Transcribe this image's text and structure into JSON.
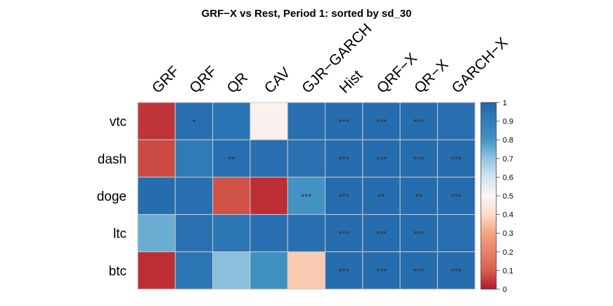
{
  "chart_data": {
    "type": "heatmap",
    "title": "GRF−X vs Rest,  Period 1: sorted by sd_30",
    "columns": [
      "GRF",
      "QRF",
      "QR",
      "CAV",
      "GJR−GARCH",
      "Hist",
      "QRF−X",
      "QR−X",
      "GARCH−X"
    ],
    "rows": [
      "vtc",
      "dash",
      "doge",
      "ltc",
      "btc"
    ],
    "values": [
      [
        0.04,
        0.96,
        0.94,
        0.48,
        0.96,
        0.97,
        0.97,
        0.97,
        0.96
      ],
      [
        0.07,
        0.91,
        0.96,
        0.96,
        0.95,
        0.97,
        0.97,
        0.97,
        0.97
      ],
      [
        0.97,
        0.96,
        0.08,
        0.03,
        0.8,
        0.97,
        0.97,
        0.97,
        0.97
      ],
      [
        0.75,
        0.95,
        0.93,
        0.96,
        0.96,
        0.97,
        0.97,
        0.97,
        0.96
      ],
      [
        0.03,
        0.93,
        0.71,
        0.82,
        0.37,
        0.97,
        0.97,
        0.97,
        0.97
      ]
    ],
    "significance": [
      [
        "",
        "*",
        "",
        "",
        "",
        "***",
        "***",
        "***",
        ""
      ],
      [
        "",
        "",
        "**",
        "",
        "",
        "***",
        "***",
        "***",
        "***"
      ],
      [
        "",
        "",
        "",
        "",
        "***",
        "***",
        "**",
        "**",
        "***"
      ],
      [
        "",
        "",
        "",
        "",
        "",
        "***",
        "***",
        "***",
        ""
      ],
      [
        "",
        "",
        "",
        "",
        "",
        "***",
        "***",
        "***",
        "***"
      ]
    ],
    "colorbar": {
      "ticks": [
        "0",
        "0.1",
        "0.2",
        "0.3",
        "0.4",
        "0.5",
        "0.6",
        "0.7",
        "0.8",
        "0.9",
        "1"
      ],
      "range": [
        0,
        1
      ],
      "low_color": "#b2182b",
      "mid_color": "#f7f7f7",
      "high_color": "#2166ac"
    },
    "grid_color": "#c8c8c8"
  }
}
